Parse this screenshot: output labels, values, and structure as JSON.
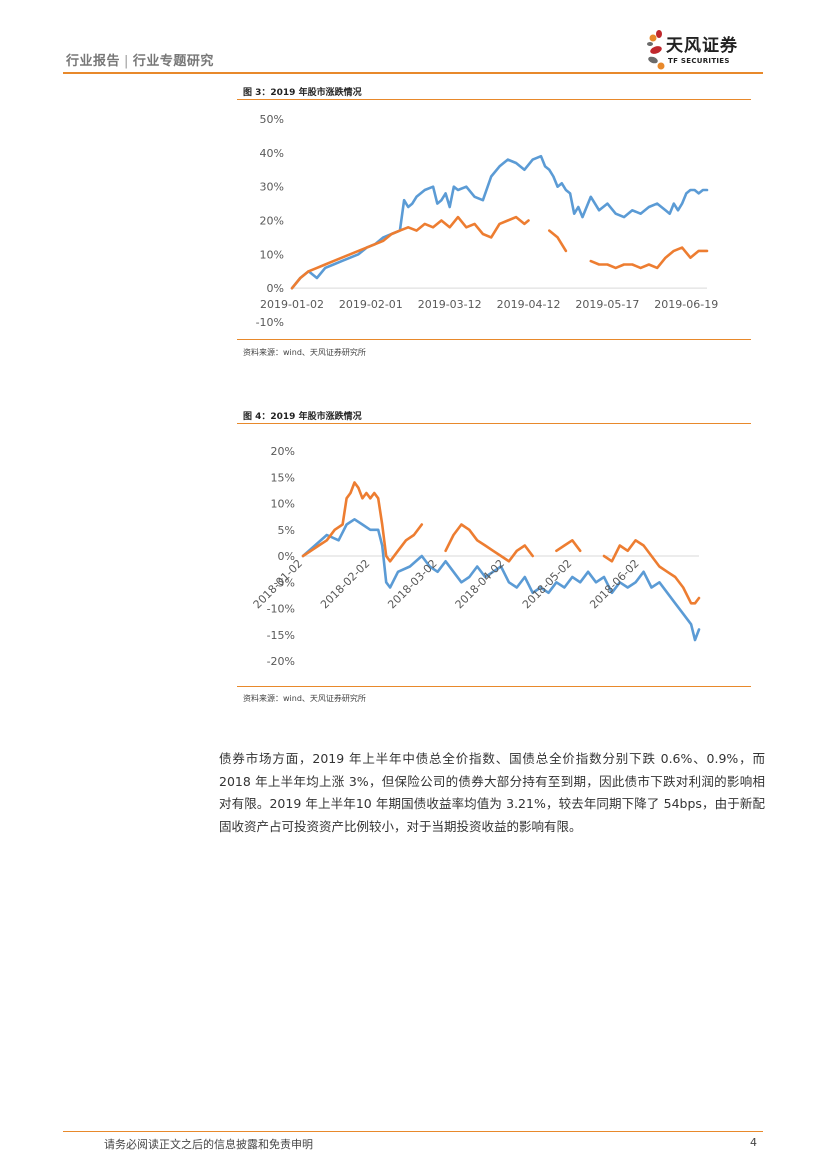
{
  "header": {
    "category": "行业报告",
    "subcategory": "行业专题研究",
    "logo_cn": "天风证券",
    "logo_en": "TF SECURITIES"
  },
  "figure3": {
    "title": "图 3：2019 年股市涨跌情况",
    "source": "资料来源：wind、天风证券研究所"
  },
  "figure4": {
    "title": "图 4：2019 年股市涨跌情况",
    "source": "资料来源：wind、天风证券研究所"
  },
  "chart_data": [
    {
      "type": "line",
      "title": "图 3：2019 年股市涨跌情况",
      "ylim": [
        -0.1,
        0.5
      ],
      "yticks": [
        "50%",
        "40%",
        "30%",
        "20%",
        "10%",
        "0%",
        "-10%"
      ],
      "ytick_values": [
        0.5,
        0.4,
        0.3,
        0.2,
        0.1,
        0.0,
        -0.1
      ],
      "xticks": [
        "2019-01-02",
        "2019-02-01",
        "2019-03-12",
        "2019-04-12",
        "2019-05-17",
        "2019-06-19"
      ],
      "xtick_pos": [
        0,
        0.19,
        0.38,
        0.57,
        0.76,
        0.95
      ],
      "xlim": [
        0,
        1
      ],
      "series": [
        {
          "name": "blue",
          "color": "#5b9bd5",
          "x": [
            0,
            0.02,
            0.04,
            0.06,
            0.08,
            0.1,
            0.12,
            0.14,
            0.16,
            0.18,
            0.2,
            0.22,
            0.24,
            0.26,
            0.27,
            0.28,
            0.29,
            0.3,
            0.32,
            0.34,
            0.35,
            0.36,
            0.37,
            0.38,
            0.39,
            0.4,
            0.42,
            0.44,
            0.46,
            0.48,
            0.5,
            0.51,
            0.52,
            0.54,
            0.56,
            0.58,
            0.6,
            0.61,
            0.62,
            0.63,
            0.64,
            0.65,
            0.66,
            0.67,
            0.68,
            0.69,
            0.7,
            0.72,
            0.74,
            0.76,
            0.78,
            0.8,
            0.82,
            0.84,
            0.86,
            0.88,
            0.9,
            0.91,
            0.92,
            0.93,
            0.94,
            0.95,
            0.96,
            0.97,
            0.98,
            0.99,
            1.0
          ],
          "y": [
            0,
            0.03,
            0.05,
            0.03,
            0.06,
            0.07,
            0.08,
            0.09,
            0.1,
            0.12,
            0.13,
            0.15,
            0.16,
            0.17,
            0.26,
            0.24,
            0.25,
            0.27,
            0.29,
            0.3,
            0.25,
            0.26,
            0.28,
            0.24,
            0.3,
            0.29,
            0.3,
            0.27,
            0.26,
            0.33,
            0.36,
            0.37,
            0.38,
            0.37,
            0.35,
            0.38,
            0.39,
            0.36,
            0.35,
            0.33,
            0.3,
            0.31,
            0.29,
            0.28,
            0.22,
            0.24,
            0.21,
            0.27,
            0.23,
            0.25,
            0.22,
            0.21,
            0.23,
            0.22,
            0.24,
            0.25,
            0.23,
            0.22,
            0.25,
            0.23,
            0.25,
            0.28,
            0.29,
            0.29,
            0.28,
            0.29,
            0.29
          ]
        },
        {
          "name": "orange",
          "color": "#ed7d31",
          "x": [
            0,
            0.02,
            0.04,
            0.06,
            0.08,
            0.1,
            0.12,
            0.14,
            0.16,
            0.18,
            0.2,
            0.22,
            0.24,
            0.26,
            0.28,
            0.3,
            0.32,
            0.34,
            0.36,
            0.38,
            0.4,
            0.42,
            0.44,
            0.46,
            0.48,
            0.5,
            0.52,
            0.54,
            0.56,
            0.57,
            0.58,
            0.6,
            0.62,
            0.64,
            0.66,
            0.68,
            0.7,
            0.72,
            0.74,
            0.76,
            0.78,
            0.8,
            0.82,
            0.84,
            0.86,
            0.88,
            0.9,
            0.92,
            0.94,
            0.96,
            0.98,
            1.0
          ],
          "y": [
            0,
            0.03,
            0.05,
            0.06,
            0.07,
            0.08,
            0.09,
            0.1,
            0.11,
            0.12,
            0.13,
            0.14,
            0.16,
            0.17,
            0.18,
            0.17,
            0.19,
            0.18,
            0.2,
            0.18,
            0.21,
            0.18,
            0.19,
            0.16,
            0.15,
            0.19,
            0.2,
            0.21,
            0.19,
            0.2,
            0.17,
            0.19,
            0.17,
            0.15,
            0.11,
            0.1,
            0.09,
            0.08,
            0.07,
            0.07,
            0.06,
            0.07,
            0.07,
            0.06,
            0.07,
            0.06,
            0.09,
            0.11,
            0.12,
            0.09,
            0.11,
            0.11
          ],
          "gaps": [
            [
              0.575,
              0.615
            ],
            [
              0.675,
              0.715
            ]
          ]
        }
      ]
    },
    {
      "type": "line",
      "title": "图 4：2019 年股市涨跌情况",
      "ylim": [
        -0.2,
        0.2
      ],
      "yticks": [
        "20%",
        "15%",
        "10%",
        "5%",
        "0%",
        "-5%",
        "-10%",
        "-15%",
        "-20%"
      ],
      "ytick_values": [
        0.2,
        0.15,
        0.1,
        0.05,
        0.0,
        -0.05,
        -0.1,
        -0.15,
        -0.2
      ],
      "xticks": [
        "2018-01-02",
        "2018-02-02",
        "2018-03-02",
        "2018-04-02",
        "2018-05-02",
        "2018-06-02"
      ],
      "xtick_pos": [
        0,
        0.17,
        0.34,
        0.51,
        0.68,
        0.85
      ],
      "xlim": [
        0,
        1
      ],
      "series": [
        {
          "name": "blue",
          "color": "#5b9bd5",
          "x": [
            0,
            0.03,
            0.06,
            0.09,
            0.11,
            0.13,
            0.15,
            0.17,
            0.19,
            0.2,
            0.21,
            0.22,
            0.24,
            0.27,
            0.3,
            0.32,
            0.34,
            0.36,
            0.38,
            0.4,
            0.42,
            0.44,
            0.46,
            0.48,
            0.5,
            0.52,
            0.54,
            0.56,
            0.58,
            0.6,
            0.62,
            0.64,
            0.66,
            0.68,
            0.7,
            0.72,
            0.74,
            0.76,
            0.78,
            0.8,
            0.82,
            0.84,
            0.86,
            0.88,
            0.9,
            0.92,
            0.94,
            0.96,
            0.98,
            0.99,
            1.0
          ],
          "y": [
            0,
            0.02,
            0.04,
            0.03,
            0.06,
            0.07,
            0.06,
            0.05,
            0.05,
            0.02,
            -0.05,
            -0.06,
            -0.03,
            -0.02,
            0.0,
            -0.02,
            -0.03,
            -0.01,
            -0.03,
            -0.05,
            -0.04,
            -0.02,
            -0.04,
            -0.03,
            -0.02,
            -0.05,
            -0.06,
            -0.04,
            -0.07,
            -0.06,
            -0.07,
            -0.05,
            -0.06,
            -0.04,
            -0.05,
            -0.03,
            -0.05,
            -0.04,
            -0.07,
            -0.05,
            -0.06,
            -0.05,
            -0.03,
            -0.06,
            -0.05,
            -0.07,
            -0.09,
            -0.11,
            -0.13,
            -0.16,
            -0.14
          ]
        },
        {
          "name": "orange",
          "color": "#ed7d31",
          "x": [
            0,
            0.02,
            0.04,
            0.06,
            0.08,
            0.1,
            0.11,
            0.12,
            0.13,
            0.14,
            0.15,
            0.16,
            0.17,
            0.18,
            0.19,
            0.2,
            0.21,
            0.22,
            0.24,
            0.26,
            0.28,
            0.3,
            0.32,
            0.34,
            0.36,
            0.38,
            0.4,
            0.42,
            0.44,
            0.46,
            0.48,
            0.5,
            0.52,
            0.54,
            0.56,
            0.58,
            0.6,
            0.62,
            0.64,
            0.66,
            0.68,
            0.7,
            0.72,
            0.74,
            0.76,
            0.78,
            0.8,
            0.82,
            0.84,
            0.86,
            0.88,
            0.9,
            0.92,
            0.94,
            0.96,
            0.98,
            0.99,
            1.0
          ],
          "y": [
            0,
            0.01,
            0.02,
            0.03,
            0.05,
            0.06,
            0.11,
            0.12,
            0.14,
            0.13,
            0.11,
            0.12,
            0.11,
            0.12,
            0.11,
            0.06,
            0.0,
            -0.01,
            0.01,
            0.03,
            0.04,
            0.06,
            0.02,
            0.03,
            0.01,
            0.04,
            0.06,
            0.05,
            0.03,
            0.02,
            0.01,
            0.0,
            -0.01,
            0.01,
            0.02,
            0.0,
            0.01,
            0.0,
            0.01,
            0.02,
            0.03,
            0.01,
            0.02,
            0.03,
            0.0,
            -0.01,
            0.02,
            0.01,
            0.03,
            0.02,
            0.0,
            -0.02,
            -0.03,
            -0.04,
            -0.06,
            -0.09,
            -0.09,
            -0.08
          ],
          "gaps": [
            [
              0.315,
              0.355
            ],
            [
              0.595,
              0.625
            ],
            [
              0.715,
              0.745
            ]
          ]
        }
      ]
    }
  ],
  "body": {
    "paragraph": "债券市场方面，2019 年上半年中债总全价指数、国债总全价指数分别下跌 0.6%、0.9%，而 2018 年上半年均上涨 3%，但保险公司的债券大部分持有至到期，因此债市下跌对利润的影响相对有限。2019 年上半年10 年期国债收益率均值为 3.21%，较去年同期下降了 54bps，由于新配固收资产占可投资资产比例较小，对于当期投资收益的影响有限。"
  },
  "footer": {
    "disclaimer": "请务必阅读正文之后的信息披露和免责申明",
    "page_number": "4"
  }
}
